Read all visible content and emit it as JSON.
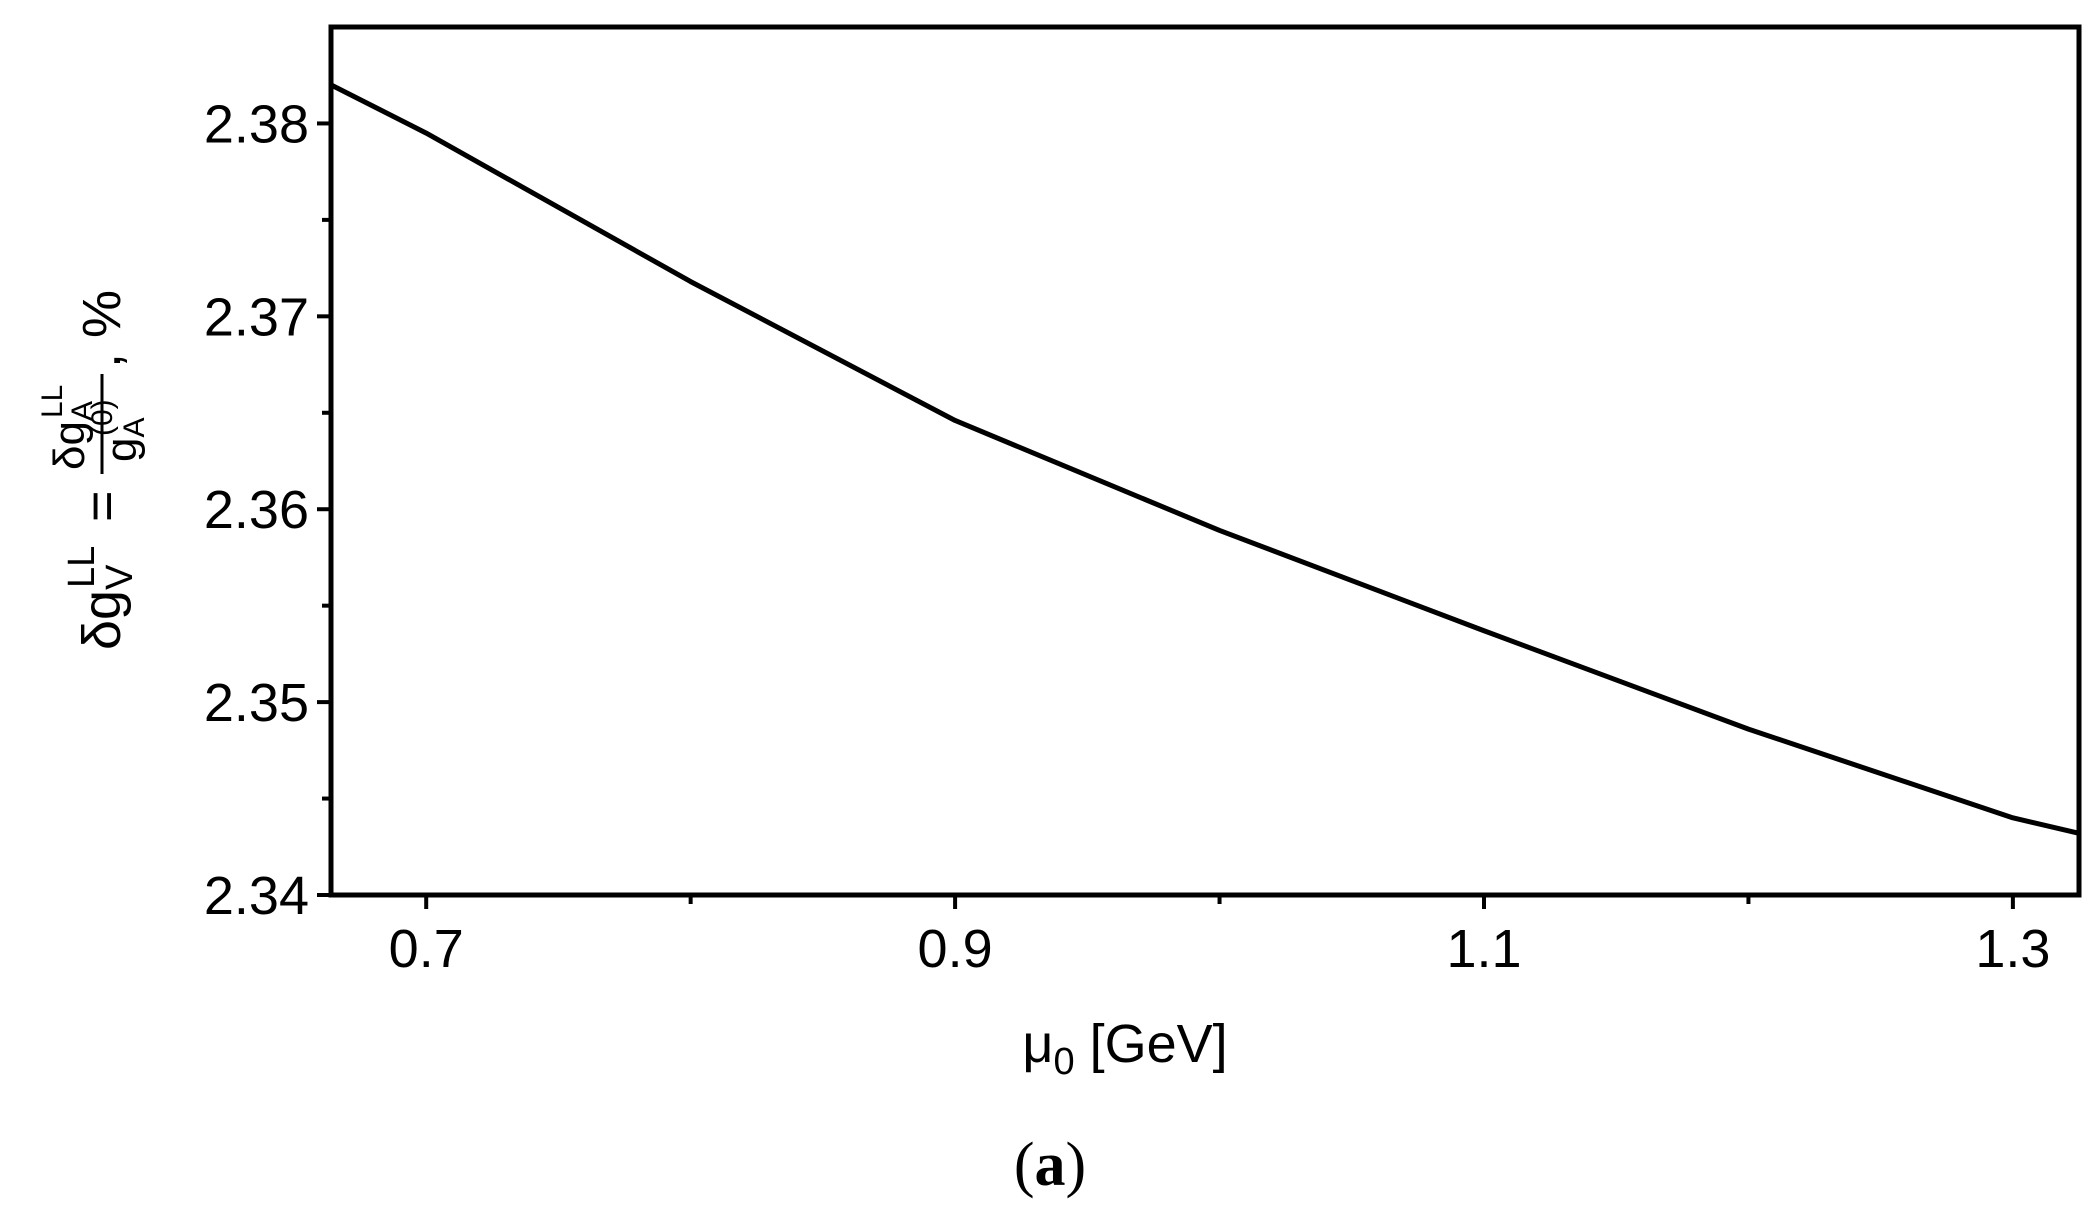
{
  "chart_data": {
    "type": "line",
    "x": [
      0.664,
      0.7,
      0.8,
      0.9,
      1.0,
      1.1,
      1.2,
      1.3,
      1.325
    ],
    "series": [
      {
        "color": "#000000",
        "values": [
          2.382,
          2.3795,
          2.3718,
          2.3646,
          2.3589,
          2.3537,
          2.3486,
          2.344,
          2.3432
        ]
      }
    ],
    "xlim": [
      0.664,
      1.325
    ],
    "xticks": [
      0.7,
      0.9,
      1.1,
      1.3
    ],
    "xticks_minor": [
      0.8,
      1.0,
      1.2
    ],
    "ylim": [
      2.34,
      2.385
    ],
    "yticks": [
      2.34,
      2.35,
      2.36,
      2.37,
      2.38
    ],
    "yticks_minor": [
      2.345,
      2.355,
      2.365,
      2.375
    ],
    "xlabel": {
      "mu": "μ",
      "sub": "0",
      "rest": " [GeV]"
    },
    "ylabel": {
      "lhs": "δg",
      "lhs_sub": "V",
      "lhs_sup": "LL",
      "eq": "=",
      "num": "δg",
      "num_sub": "A",
      "num_sup": "LL",
      "den": "g",
      "den_sub": "A",
      "den_sup": "(0)",
      "unit": ", %"
    },
    "caption": {
      "open": "(",
      "letter": "a",
      "close": ")"
    }
  }
}
